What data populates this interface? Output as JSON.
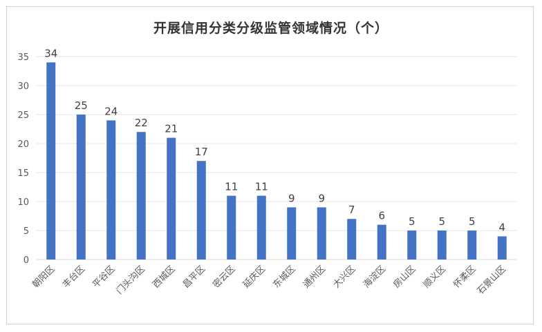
{
  "chart_data": {
    "type": "bar",
    "title": "开展信用分类分级监管领域情况（个）",
    "categories": [
      "朝阳区",
      "丰台区",
      "平谷区",
      "门头沟区",
      "西城区",
      "昌平区",
      "密云区",
      "延庆区",
      "东城区",
      "通州区",
      "大兴区",
      "海淀区",
      "房山区",
      "顺义区",
      "怀柔区",
      "石景山区"
    ],
    "values": [
      34,
      25,
      24,
      22,
      21,
      17,
      11,
      11,
      9,
      9,
      7,
      6,
      5,
      5,
      5,
      4
    ],
    "ylim": [
      0,
      35
    ],
    "yticks": [
      0,
      5,
      10,
      15,
      20,
      25,
      30,
      35
    ],
    "grid": true,
    "bar_color": "#4472c4",
    "data_labels": true
  }
}
